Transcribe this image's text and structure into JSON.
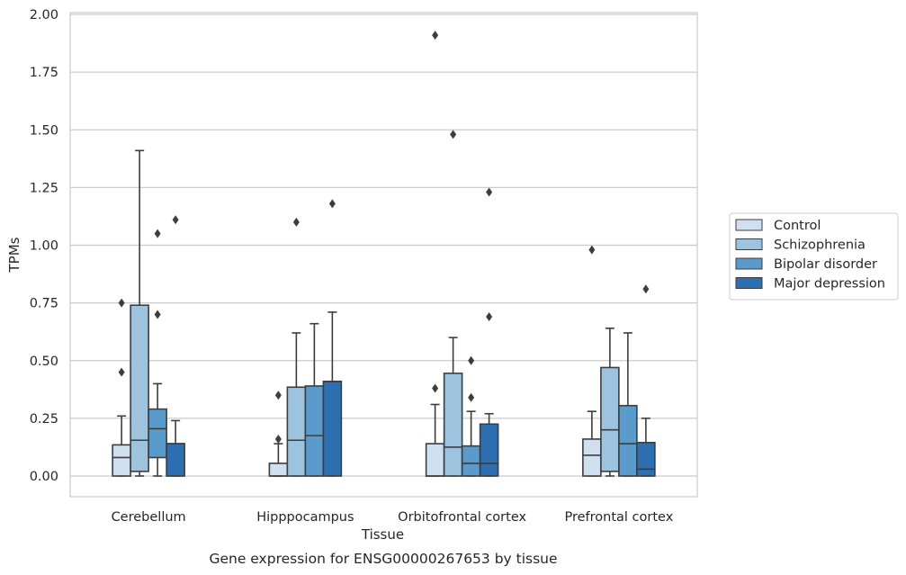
{
  "caption": "Gene expression for ENSG00000267653 by tissue",
  "chart_data": {
    "type": "box",
    "xlabel": "Tissue",
    "ylabel": "TPMs",
    "ylim": [
      -0.09,
      2.01
    ],
    "yticks": [
      "0.00",
      "0.25",
      "0.50",
      "0.75",
      "1.00",
      "1.25",
      "1.50",
      "1.75",
      "2.00"
    ],
    "grid": "horizontal",
    "legend_position": "right",
    "categories": [
      "Cerebellum",
      "Hipppocampus",
      "Orbitofrontal cortex",
      "Prefrontal cortex"
    ],
    "series": [
      {
        "name": "Control",
        "color": "#d0e0f1",
        "boxes": [
          {
            "whisker_low": 0.0,
            "q1": 0.0,
            "median": 0.08,
            "q3": 0.135,
            "whisker_high": 0.26,
            "outliers": [
              0.45,
              0.75
            ]
          },
          {
            "whisker_low": 0.0,
            "q1": 0.0,
            "median": 0.0,
            "q3": 0.055,
            "whisker_high": 0.14,
            "outliers": [
              0.16,
              0.35
            ]
          },
          {
            "whisker_low": 0.0,
            "q1": 0.0,
            "median": 0.0,
            "q3": 0.14,
            "whisker_high": 0.31,
            "outliers": [
              0.38,
              1.91
            ]
          },
          {
            "whisker_low": 0.0,
            "q1": 0.0,
            "median": 0.09,
            "q3": 0.16,
            "whisker_high": 0.28,
            "outliers": [
              0.98
            ]
          }
        ]
      },
      {
        "name": "Schizophrenia",
        "color": "#9dc3df",
        "boxes": [
          {
            "whisker_low": 0.0,
            "q1": 0.02,
            "median": 0.155,
            "q3": 0.74,
            "whisker_high": 1.41,
            "outliers": []
          },
          {
            "whisker_low": 0.0,
            "q1": 0.0,
            "median": 0.155,
            "q3": 0.385,
            "whisker_high": 0.62,
            "outliers": [
              1.1
            ]
          },
          {
            "whisker_low": 0.0,
            "q1": 0.0,
            "median": 0.125,
            "q3": 0.445,
            "whisker_high": 0.6,
            "outliers": [
              1.48
            ]
          },
          {
            "whisker_low": 0.0,
            "q1": 0.02,
            "median": 0.2,
            "q3": 0.47,
            "whisker_high": 0.64,
            "outliers": []
          }
        ]
      },
      {
        "name": "Bipolar disorder",
        "color": "#5b9bcb",
        "boxes": [
          {
            "whisker_low": 0.0,
            "q1": 0.08,
            "median": 0.205,
            "q3": 0.29,
            "whisker_high": 0.4,
            "outliers": [
              0.7,
              1.05
            ]
          },
          {
            "whisker_low": 0.0,
            "q1": 0.0,
            "median": 0.175,
            "q3": 0.39,
            "whisker_high": 0.66,
            "outliers": []
          },
          {
            "whisker_low": 0.0,
            "q1": 0.0,
            "median": 0.055,
            "q3": 0.13,
            "whisker_high": 0.28,
            "outliers": [
              0.34,
              0.5
            ]
          },
          {
            "whisker_low": 0.0,
            "q1": 0.0,
            "median": 0.14,
            "q3": 0.305,
            "whisker_high": 0.62,
            "outliers": []
          }
        ]
      },
      {
        "name": "Major depression",
        "color": "#2d6fb0",
        "boxes": [
          {
            "whisker_low": 0.0,
            "q1": 0.0,
            "median": 0.14,
            "q3": 0.14,
            "whisker_high": 0.24,
            "outliers": [
              1.11
            ]
          },
          {
            "whisker_low": 0.0,
            "q1": 0.0,
            "median": 0.41,
            "q3": 0.41,
            "whisker_high": 0.71,
            "outliers": [
              1.18
            ]
          },
          {
            "whisker_low": 0.0,
            "q1": 0.0,
            "median": 0.055,
            "q3": 0.225,
            "whisker_high": 0.27,
            "outliers": [
              0.69,
              1.23
            ]
          },
          {
            "whisker_low": 0.0,
            "q1": 0.0,
            "median": 0.03,
            "q3": 0.145,
            "whisker_high": 0.25,
            "outliers": [
              0.81
            ]
          }
        ]
      }
    ]
  }
}
